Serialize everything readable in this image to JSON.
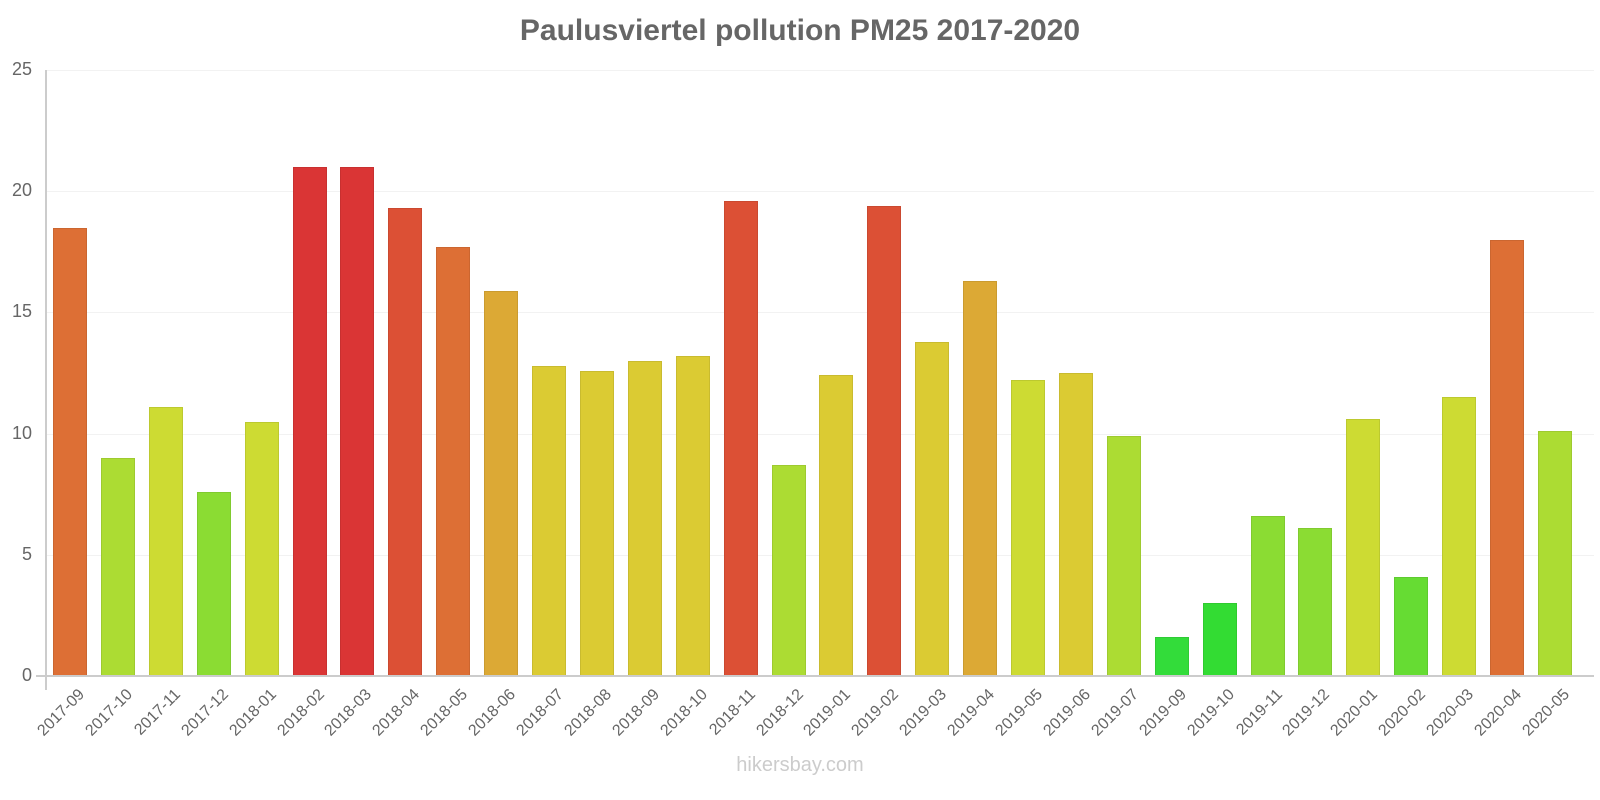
{
  "chart_data": {
    "type": "bar",
    "title": "Paulusviertel pollution PM25 2017-2020",
    "xlabel": "",
    "ylabel": "",
    "ylim": [
      0,
      25
    ],
    "yticks": [
      0,
      5,
      10,
      15,
      20,
      25
    ],
    "grid": true,
    "legend": "none",
    "categories": [
      "2017-09",
      "2017-10",
      "2017-11",
      "2017-12",
      "2018-01",
      "2018-02",
      "2018-03",
      "2018-04",
      "2018-05",
      "2018-06",
      "2018-07",
      "2018-08",
      "2018-09",
      "2018-10",
      "2018-11",
      "2018-12",
      "2019-01",
      "2019-02",
      "2019-03",
      "2019-04",
      "2019-05",
      "2019-06",
      "2019-07",
      "2019-09",
      "2019-10",
      "2019-11",
      "2019-12",
      "2020-01",
      "2020-02",
      "2020-03",
      "2020-04",
      "2020-05"
    ],
    "values": [
      18.5,
      9.0,
      11.1,
      7.6,
      10.5,
      21.0,
      21.0,
      19.3,
      17.7,
      15.9,
      12.8,
      12.6,
      13.0,
      13.2,
      19.6,
      8.7,
      12.4,
      19.4,
      13.8,
      16.3,
      12.2,
      12.5,
      9.9,
      1.6,
      3.0,
      6.6,
      6.1,
      10.6,
      4.1,
      11.5,
      18.0,
      10.1
    ],
    "colors": [
      "#dd6f35",
      "#acdc33",
      "#cddb33",
      "#8bdc33",
      "#cddb33",
      "#da3535",
      "#da3535",
      "#dc5035",
      "#dd6f35",
      "#dca935",
      "#dbcb33",
      "#dbcb33",
      "#dbcb33",
      "#dbcb33",
      "#dc5035",
      "#acdc33",
      "#dbcb33",
      "#dc5035",
      "#dbcb33",
      "#dca935",
      "#cddb33",
      "#dbcb33",
      "#acdc33",
      "#33dc3a",
      "#33dc33",
      "#8bdc33",
      "#8bdc33",
      "#cddb33",
      "#66dc33",
      "#cddb33",
      "#dd6f35",
      "#acdc33"
    ]
  },
  "watermark": "hikersbay.com"
}
